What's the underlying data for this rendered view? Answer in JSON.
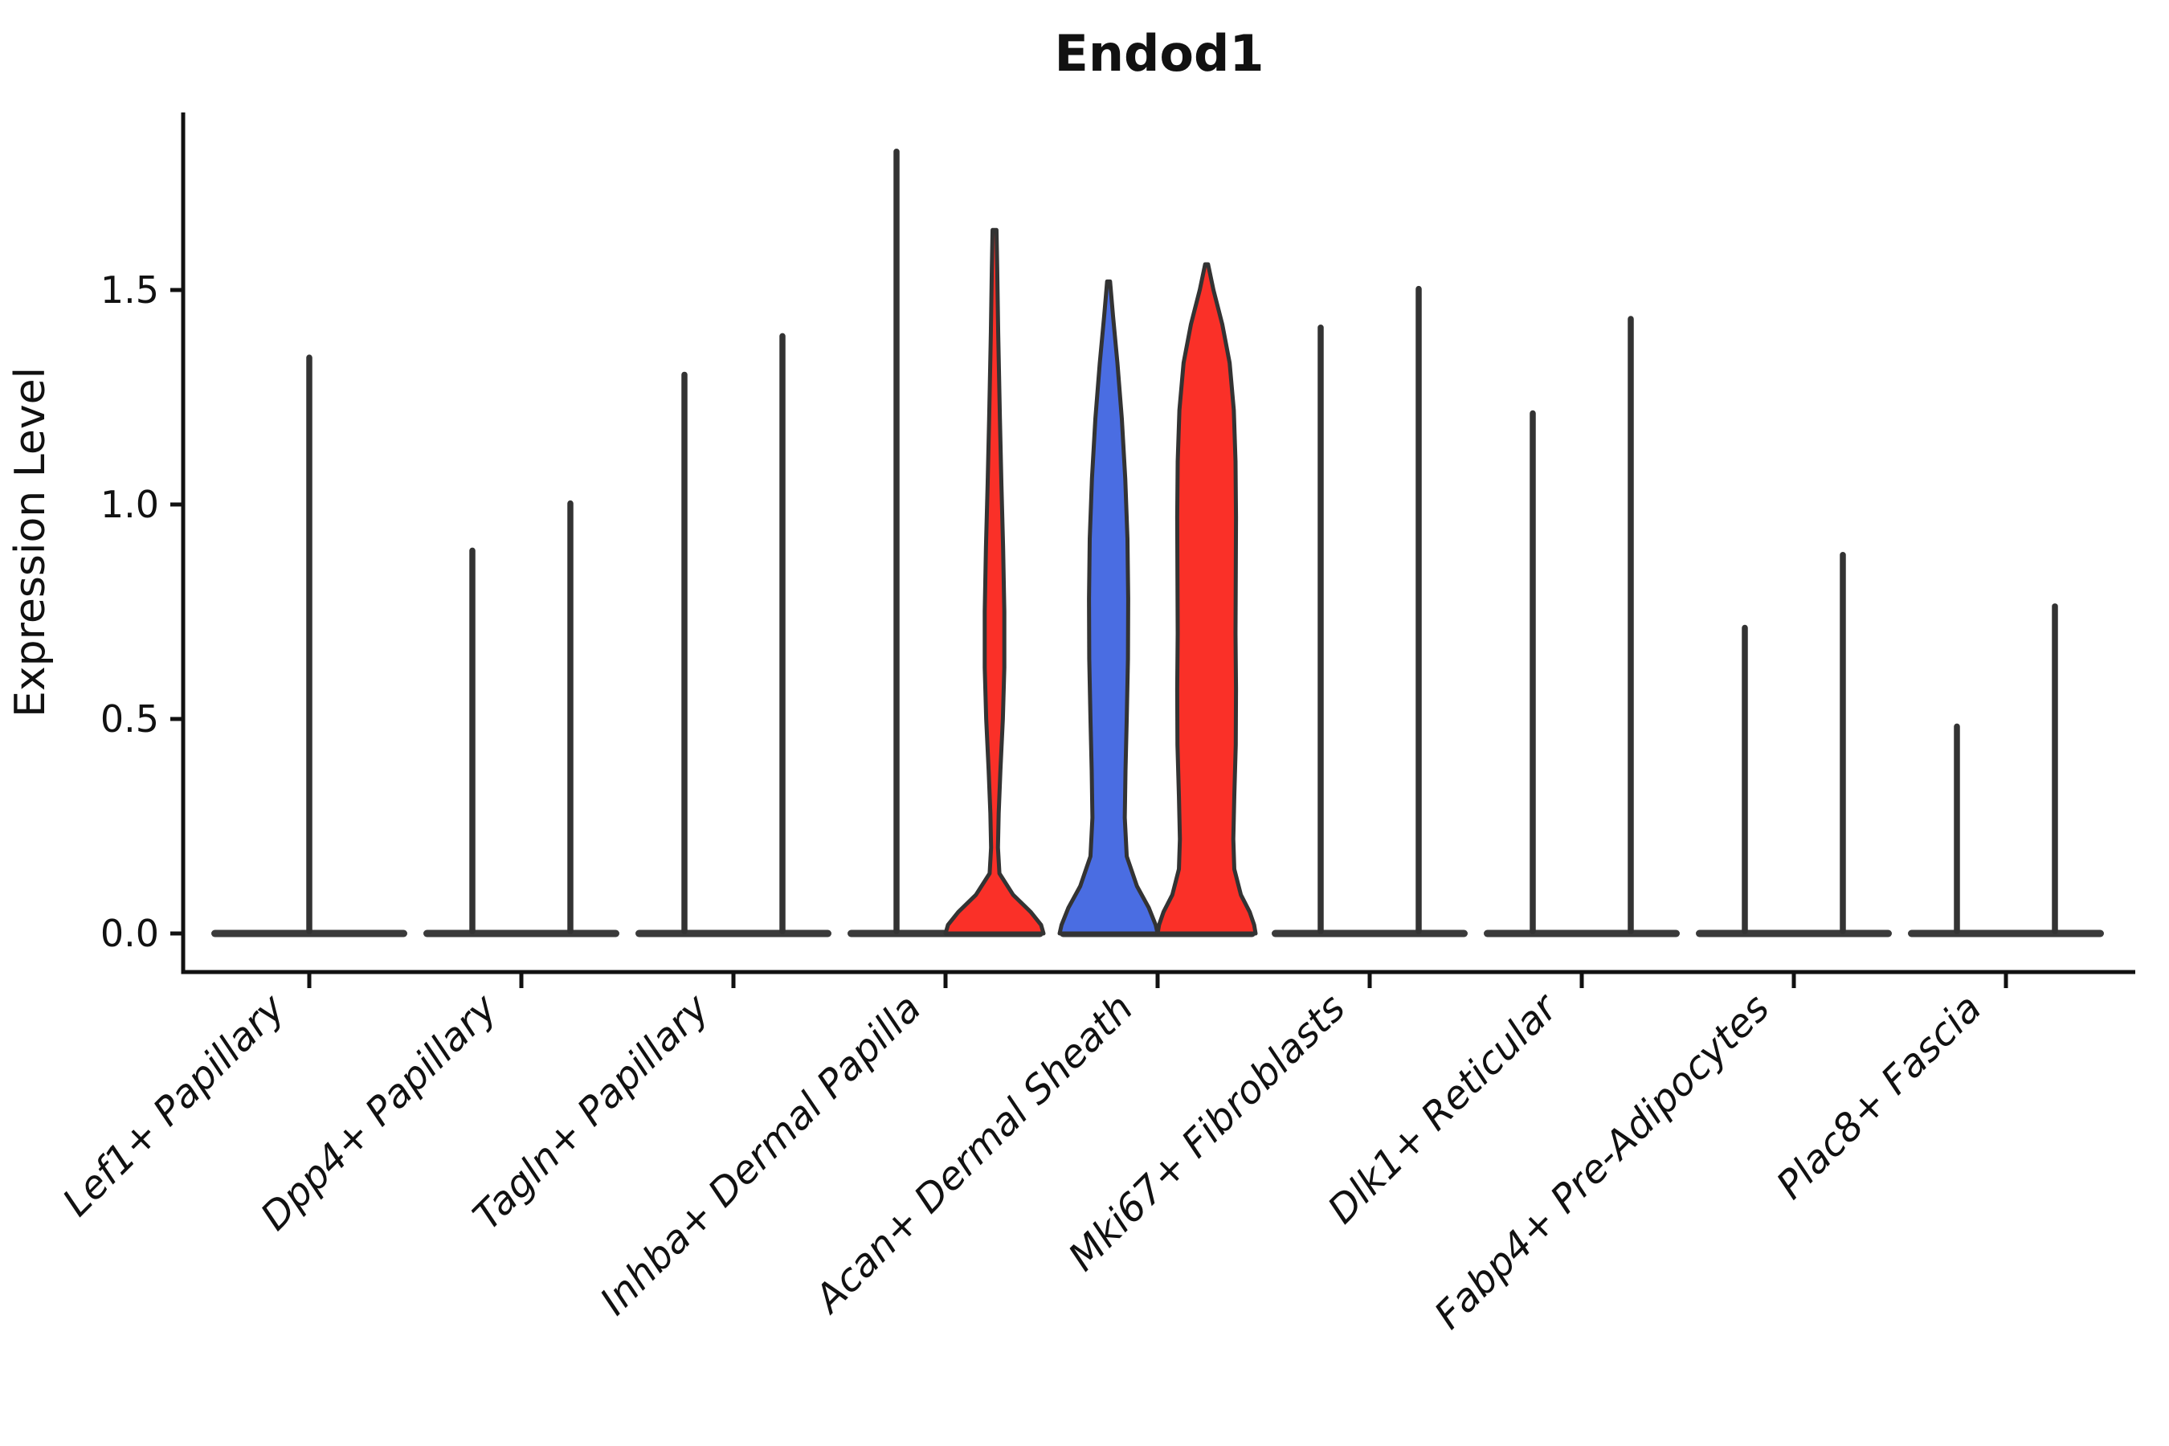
{
  "title": "Endod1",
  "axes": {
    "ylabel": "Expression Level",
    "ytick_labels": [
      "0.0",
      "0.5",
      "1.0",
      "1.5"
    ]
  },
  "colors": {
    "split_left_fill": "#4a6de2",
    "split_right_fill": "#fa3028",
    "violin_outline": "#333333",
    "baseline_bar": "#3a3a3a",
    "axis": "#111111"
  },
  "chart_data": {
    "type": "violin",
    "title": "Endod1",
    "xlabel": "",
    "ylabel": "Expression Level",
    "ylim": [
      -0.09,
      1.91
    ],
    "yticks": [
      0.0,
      0.5,
      1.0,
      1.5
    ],
    "ytick_labels": [
      "0.0",
      "0.5",
      "1.0",
      "1.5"
    ],
    "grid": false,
    "legend": "none",
    "split_colors": {
      "left": "#4a6de2",
      "right": "#fa3028"
    },
    "categories": [
      "Lef1+ Papillary",
      "Dpp4+ Papillary",
      "Tagln+ Papillary",
      "Inhba+ Dermal Papilla",
      "Acan+ Dermal Sheath",
      "Mki67+ Fibroblasts",
      "Dlk1+ Reticular",
      "Fabp4+ Pre-Adipocytes",
      "Plac8+ Fascia"
    ],
    "violins": [
      [
        {
          "side": "center",
          "type": "spike",
          "max": 1.35
        }
      ],
      [
        {
          "side": "left",
          "type": "spike",
          "max": 0.9
        },
        {
          "side": "right",
          "type": "spike",
          "max": 1.01
        }
      ],
      [
        {
          "side": "left",
          "type": "spike",
          "max": 1.31
        },
        {
          "side": "right",
          "type": "spike",
          "max": 1.4
        }
      ],
      [
        {
          "side": "left",
          "type": "spike",
          "max": 1.83
        },
        {
          "side": "right",
          "type": "shaped",
          "color": "#fa3028",
          "max": 1.64,
          "profile": [
            [
              1.64,
              0.04
            ],
            [
              1.55,
              0.055
            ],
            [
              1.4,
              0.075
            ],
            [
              1.2,
              0.11
            ],
            [
              1.05,
              0.14
            ],
            [
              0.9,
              0.175
            ],
            [
              0.75,
              0.2
            ],
            [
              0.62,
              0.2
            ],
            [
              0.5,
              0.17
            ],
            [
              0.38,
              0.12
            ],
            [
              0.28,
              0.085
            ],
            [
              0.2,
              0.07
            ],
            [
              0.14,
              0.1
            ],
            [
              0.09,
              0.38
            ],
            [
              0.05,
              0.74
            ],
            [
              0.02,
              0.95
            ],
            [
              0.0,
              1.0
            ]
          ]
        }
      ],
      [
        {
          "side": "left",
          "type": "shaped",
          "color": "#4a6de2",
          "max": 1.52,
          "profile": [
            [
              1.52,
              0.03
            ],
            [
              1.44,
              0.09
            ],
            [
              1.33,
              0.18
            ],
            [
              1.2,
              0.27
            ],
            [
              1.06,
              0.34
            ],
            [
              0.92,
              0.385
            ],
            [
              0.78,
              0.4
            ],
            [
              0.64,
              0.395
            ],
            [
              0.5,
              0.37
            ],
            [
              0.38,
              0.345
            ],
            [
              0.27,
              0.33
            ],
            [
              0.18,
              0.37
            ],
            [
              0.11,
              0.58
            ],
            [
              0.06,
              0.82
            ],
            [
              0.02,
              0.96
            ],
            [
              0.0,
              1.0
            ]
          ]
        },
        {
          "side": "right",
          "type": "shaped",
          "color": "#fa3028",
          "max": 1.56,
          "profile": [
            [
              1.56,
              0.03
            ],
            [
              1.5,
              0.14
            ],
            [
              1.42,
              0.32
            ],
            [
              1.33,
              0.47
            ],
            [
              1.22,
              0.555
            ],
            [
              1.1,
              0.59
            ],
            [
              0.97,
              0.6
            ],
            [
              0.83,
              0.595
            ],
            [
              0.7,
              0.59
            ],
            [
              0.57,
              0.6
            ],
            [
              0.44,
              0.595
            ],
            [
              0.32,
              0.565
            ],
            [
              0.22,
              0.545
            ],
            [
              0.15,
              0.565
            ],
            [
              0.09,
              0.7
            ],
            [
              0.05,
              0.88
            ],
            [
              0.02,
              0.97
            ],
            [
              0.0,
              1.0
            ]
          ]
        }
      ],
      [
        {
          "side": "left",
          "type": "spike",
          "max": 1.42
        },
        {
          "side": "right",
          "type": "spike",
          "max": 1.51
        }
      ],
      [
        {
          "side": "left",
          "type": "spike",
          "max": 1.22
        },
        {
          "side": "right",
          "type": "spike",
          "max": 1.44
        }
      ],
      [
        {
          "side": "left",
          "type": "spike",
          "max": 0.72
        },
        {
          "side": "right",
          "type": "spike",
          "max": 0.89
        }
      ],
      [
        {
          "side": "left",
          "type": "spike",
          "max": 0.49
        },
        {
          "side": "right",
          "type": "spike",
          "max": 0.77
        }
      ]
    ]
  }
}
